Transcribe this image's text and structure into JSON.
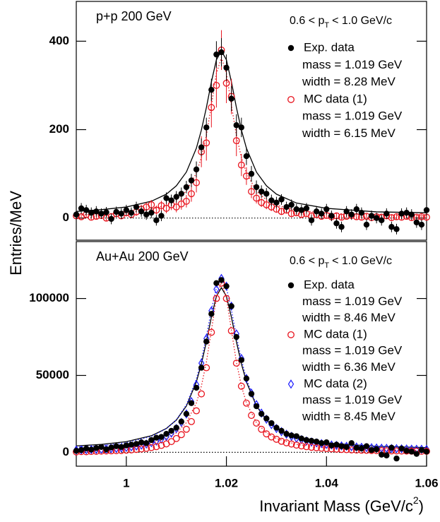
{
  "chart_data": [
    {
      "type": "scatter",
      "title": "p+p 200 GeV",
      "ylabel": "Entries/MeV",
      "pt_label": {
        "pre": "0.6 < p",
        "sub": "T",
        "post": "< 1.0 GeV/c"
      },
      "xlim": [
        0.99,
        1.06
      ],
      "ylim": [
        -50,
        490
      ],
      "yticks": [
        0,
        200,
        400
      ],
      "x": [
        0.99,
        0.991,
        0.992,
        0.993,
        0.994,
        0.995,
        0.996,
        0.997,
        0.998,
        0.999,
        1,
        1.001,
        1.002,
        1.003,
        1.004,
        1.005,
        1.006,
        1.007,
        1.008,
        1.009,
        1.01,
        1.011,
        1.012,
        1.013,
        1.014,
        1.015,
        1.016,
        1.017,
        1.018,
        1.019,
        1.02,
        1.021,
        1.022,
        1.023,
        1.024,
        1.025,
        1.026,
        1.027,
        1.028,
        1.029,
        1.03,
        1.031,
        1.032,
        1.033,
        1.034,
        1.035,
        1.036,
        1.037,
        1.038,
        1.039,
        1.04,
        1.041,
        1.042,
        1.043,
        1.044,
        1.045,
        1.046,
        1.047,
        1.048,
        1.049,
        1.05,
        1.051,
        1.052,
        1.053,
        1.054,
        1.055,
        1.056,
        1.057,
        1.058,
        1.059,
        1.06
      ],
      "series": [
        {
          "name": "Exp. data",
          "color": "#000000",
          "marker": "dot",
          "legend": [
            "mass = 1.019 GeV",
            "width = 8.28 MeV"
          ],
          "values": [
            8,
            22,
            18,
            12,
            15,
            10,
            13,
            -2,
            14,
            10,
            18,
            12,
            25,
            15,
            8,
            12,
            -5,
            5,
            45,
            40,
            48,
            55,
            70,
            85,
            110,
            160,
            205,
            290,
            370,
            375,
            340,
            270,
            210,
            205,
            140,
            100,
            70,
            60,
            55,
            40,
            35,
            42,
            25,
            30,
            20,
            18,
            22,
            -5,
            15,
            10,
            20,
            5,
            -12,
            -20,
            15,
            8,
            20,
            12,
            -15,
            5,
            0,
            -5,
            10,
            -20,
            -25,
            10,
            12,
            8,
            -10,
            -15,
            18
          ],
          "errors": [
            12,
            12,
            12,
            12,
            12,
            12,
            12,
            12,
            12,
            12,
            12,
            12,
            12,
            12,
            12,
            12,
            12,
            12,
            13,
            13,
            13,
            14,
            14,
            15,
            18,
            20,
            22,
            25,
            30,
            32,
            30,
            28,
            25,
            22,
            20,
            18,
            15,
            14,
            13,
            13,
            13,
            12,
            12,
            12,
            12,
            12,
            12,
            12,
            12,
            12,
            12,
            12,
            12,
            12,
            12,
            12,
            12,
            12,
            12,
            12,
            12,
            12,
            12,
            12,
            12,
            12,
            12,
            12,
            12,
            12,
            12
          ]
        },
        {
          "name": "MC data (1)",
          "color": "#e8141e",
          "marker": "circle",
          "legend": [
            "mass = 1.019 GeV",
            "width = 6.15 MeV"
          ],
          "values": [
            5,
            3,
            8,
            2,
            4,
            6,
            0,
            3,
            10,
            5,
            12,
            8,
            14,
            20,
            25,
            30,
            18,
            28,
            22,
            30,
            25,
            32,
            38,
            55,
            80,
            150,
            170,
            250,
            300,
            380,
            305,
            275,
            175,
            120,
            95,
            60,
            45,
            35,
            30,
            25,
            20,
            15,
            18,
            10,
            12,
            8,
            10,
            5,
            8,
            4,
            6,
            3,
            5,
            2,
            4,
            6,
            3,
            2,
            4,
            1,
            3,
            2,
            5,
            1,
            3,
            2,
            4,
            1,
            2,
            3,
            2
          ],
          "errors": [
            6,
            6,
            6,
            6,
            6,
            6,
            6,
            6,
            7,
            7,
            8,
            8,
            9,
            10,
            10,
            11,
            10,
            11,
            11,
            12,
            12,
            13,
            14,
            18,
            22,
            35,
            40,
            45,
            50,
            45,
            45,
            40,
            35,
            25,
            20,
            15,
            12,
            10,
            10,
            9,
            8,
            8,
            8,
            7,
            7,
            7,
            7,
            6,
            6,
            6,
            6,
            6,
            6,
            6,
            6,
            6,
            6,
            6,
            6,
            6,
            6,
            6,
            6,
            6,
            6,
            6,
            6,
            6,
            6,
            6,
            6
          ]
        }
      ],
      "fit_x": [
        0.99,
        0.995,
        1,
        1.005,
        1.008,
        1.01,
        1.012,
        1.014,
        1.015,
        1.016,
        1.017,
        1.018,
        1.019,
        1.02,
        1.021,
        1.022,
        1.023,
        1.024,
        1.026,
        1.028,
        1.03,
        1.034,
        1.04,
        1.05,
        1.06
      ],
      "fits": [
        {
          "color": "#000000",
          "dashed": false,
          "values": [
            15,
            19,
            25,
            38,
            54,
            73,
            104,
            158,
            199,
            250,
            308,
            358,
            378,
            358,
            308,
            250,
            199,
            158,
            104,
            73,
            54,
            34,
            22,
            14,
            12
          ]
        },
        {
          "color": "#e8141e",
          "dashed": true,
          "values": [
            7,
            9,
            12,
            20,
            29,
            41,
            61,
            102,
            137,
            187,
            255,
            327,
            363,
            327,
            255,
            187,
            137,
            102,
            61,
            41,
            29,
            18,
            11,
            7,
            5
          ]
        }
      ]
    },
    {
      "type": "scatter",
      "title": "Au+Au 200 GeV",
      "pt_label": {
        "pre": "0.6 < p",
        "sub": "T",
        "post": "< 1.0 GeV/c"
      },
      "xlabel": {
        "text": "Invariant Mass (GeV/c",
        "sup": "2",
        "tail": ")"
      },
      "xlim": [
        0.99,
        1.06
      ],
      "xticks": [
        1,
        1.02,
        1.04,
        1.06
      ],
      "ylim": [
        -9000,
        137000
      ],
      "yticks": [
        0,
        50000,
        100000
      ],
      "x": [
        0.99,
        0.991,
        0.992,
        0.993,
        0.994,
        0.995,
        0.996,
        0.997,
        0.998,
        0.999,
        1,
        1.001,
        1.002,
        1.003,
        1.004,
        1.005,
        1.006,
        1.007,
        1.008,
        1.009,
        1.01,
        1.011,
        1.012,
        1.013,
        1.014,
        1.015,
        1.016,
        1.017,
        1.018,
        1.019,
        1.02,
        1.021,
        1.022,
        1.023,
        1.024,
        1.025,
        1.026,
        1.027,
        1.028,
        1.029,
        1.03,
        1.031,
        1.032,
        1.033,
        1.034,
        1.035,
        1.036,
        1.037,
        1.038,
        1.039,
        1.04,
        1.041,
        1.042,
        1.043,
        1.044,
        1.045,
        1.046,
        1.047,
        1.048,
        1.049,
        1.05,
        1.051,
        1.052,
        1.053,
        1.054,
        1.055,
        1.056,
        1.057,
        1.058,
        1.059,
        1.06
      ],
      "series": [
        {
          "name": "Exp. data",
          "color": "#000000",
          "marker": "dot",
          "legend": [
            "mass = 1.019 GeV",
            "width = 8.46 MeV"
          ],
          "values": [
            1000,
            1500,
            2500,
            1800,
            2800,
            3500,
            2000,
            3200,
            4000,
            3500,
            4500,
            5000,
            5500,
            6500,
            6000,
            8000,
            9500,
            10000,
            12000,
            14000,
            16000,
            20000,
            25000,
            32000,
            42000,
            55000,
            72000,
            90000,
            110000,
            112000,
            108000,
            95000,
            75000,
            60000,
            48000,
            38000,
            30000,
            25000,
            22000,
            19000,
            16000,
            14000,
            12000,
            11000,
            10500,
            9000,
            8000,
            7500,
            7000,
            6000,
            6500,
            4500,
            5000,
            4000,
            3500,
            6000,
            3000,
            2500,
            4000,
            1500,
            2000,
            -1500,
            -2000,
            3000,
            -4000,
            2500,
            1000,
            500,
            -1000,
            1500,
            500
          ]
        },
        {
          "name": "MC data (1)",
          "color": "#e8141e",
          "marker": "circle",
          "legend": [
            "mass = 1.019 GeV",
            "width = 6.36 MeV"
          ],
          "values": [
            300,
            500,
            400,
            600,
            700,
            800,
            900,
            1000,
            1100,
            1200,
            1400,
            1600,
            1900,
            2200,
            2600,
            3100,
            3700,
            4500,
            5500,
            7000,
            9000,
            11500,
            15000,
            20000,
            27000,
            38000,
            55000,
            78000,
            100000,
            110000,
            100000,
            79000,
            58000,
            43000,
            32000,
            24000,
            19000,
            15000,
            12000,
            10000,
            8500,
            7200,
            6200,
            5400,
            4700,
            4200,
            3700,
            3300,
            3000,
            2700,
            2500,
            2300,
            2100,
            1900,
            1750,
            1600,
            1500,
            1400,
            1300,
            1200,
            1150,
            1100,
            1000,
            950,
            900,
            850,
            800,
            780,
            750,
            700,
            680
          ]
        },
        {
          "name": "MC data (2)",
          "color": "#1a1aff",
          "marker": "diamond",
          "legend": [
            "mass = 1.019 GeV",
            "width = 8.45 MeV"
          ],
          "values": [
            1500,
            1600,
            1700,
            1800,
            1900,
            2000,
            2200,
            2400,
            2600,
            2900,
            3200,
            3600,
            4100,
            4700,
            5400,
            6300,
            7300,
            8600,
            10300,
            12500,
            15500,
            19500,
            25000,
            33000,
            44000,
            58000,
            74000,
            92000,
            106000,
            113000,
            108000,
            95000,
            77000,
            61000,
            48000,
            38500,
            31000,
            25500,
            21500,
            18000,
            15500,
            13500,
            11800,
            10400,
            9200,
            8300,
            7400,
            6800,
            6200,
            5700,
            5200,
            4800,
            4500,
            4200,
            3900,
            3700,
            3500,
            3300,
            3100,
            3000,
            2800,
            2700,
            2600,
            2500,
            2400,
            2300,
            2200,
            2100,
            2000,
            2000,
            1900
          ]
        }
      ],
      "fit_x": [
        0.99,
        0.995,
        1,
        1.005,
        1.008,
        1.01,
        1.012,
        1.014,
        1.015,
        1.016,
        1.017,
        1.018,
        1.019,
        1.02,
        1.021,
        1.022,
        1.023,
        1.024,
        1.026,
        1.028,
        1.03,
        1.034,
        1.04,
        1.05,
        1.06
      ],
      "fits": [
        {
          "color": "#000000",
          "dashed": false,
          "values": [
            4190,
            5170,
            6960,
            10790,
            15540,
            21010,
            30100,
            45820,
            57460,
            71890,
            87850,
            101470,
            107000,
            101470,
            87850,
            71890,
            57460,
            45820,
            30100,
            21010,
            15540,
            9740,
            6100,
            3920,
            3110
          ]
        },
        {
          "color": "#e8141e",
          "dashed": true,
          "values": [
            1810,
            2400,
            3500,
            5890,
            8980,
            12700,
            19300,
            32150,
            43070,
            58670,
            79290,
            100590,
            110500,
            100590,
            79290,
            58670,
            43070,
            32150,
            19300,
            12700,
            8980,
            5230,
            2960,
            1640,
            1160
          ]
        },
        {
          "color": "#1a1aff",
          "dashed": true,
          "values": [
            3330,
            4370,
            6280,
            10350,
            15390,
            21200,
            30900,
            47700,
            60100,
            75500,
            92500,
            107100,
            113000,
            107100,
            92500,
            75500,
            60100,
            47700,
            30900,
            21200,
            15390,
            9230,
            5360,
            3040,
            2180
          ]
        }
      ]
    }
  ]
}
